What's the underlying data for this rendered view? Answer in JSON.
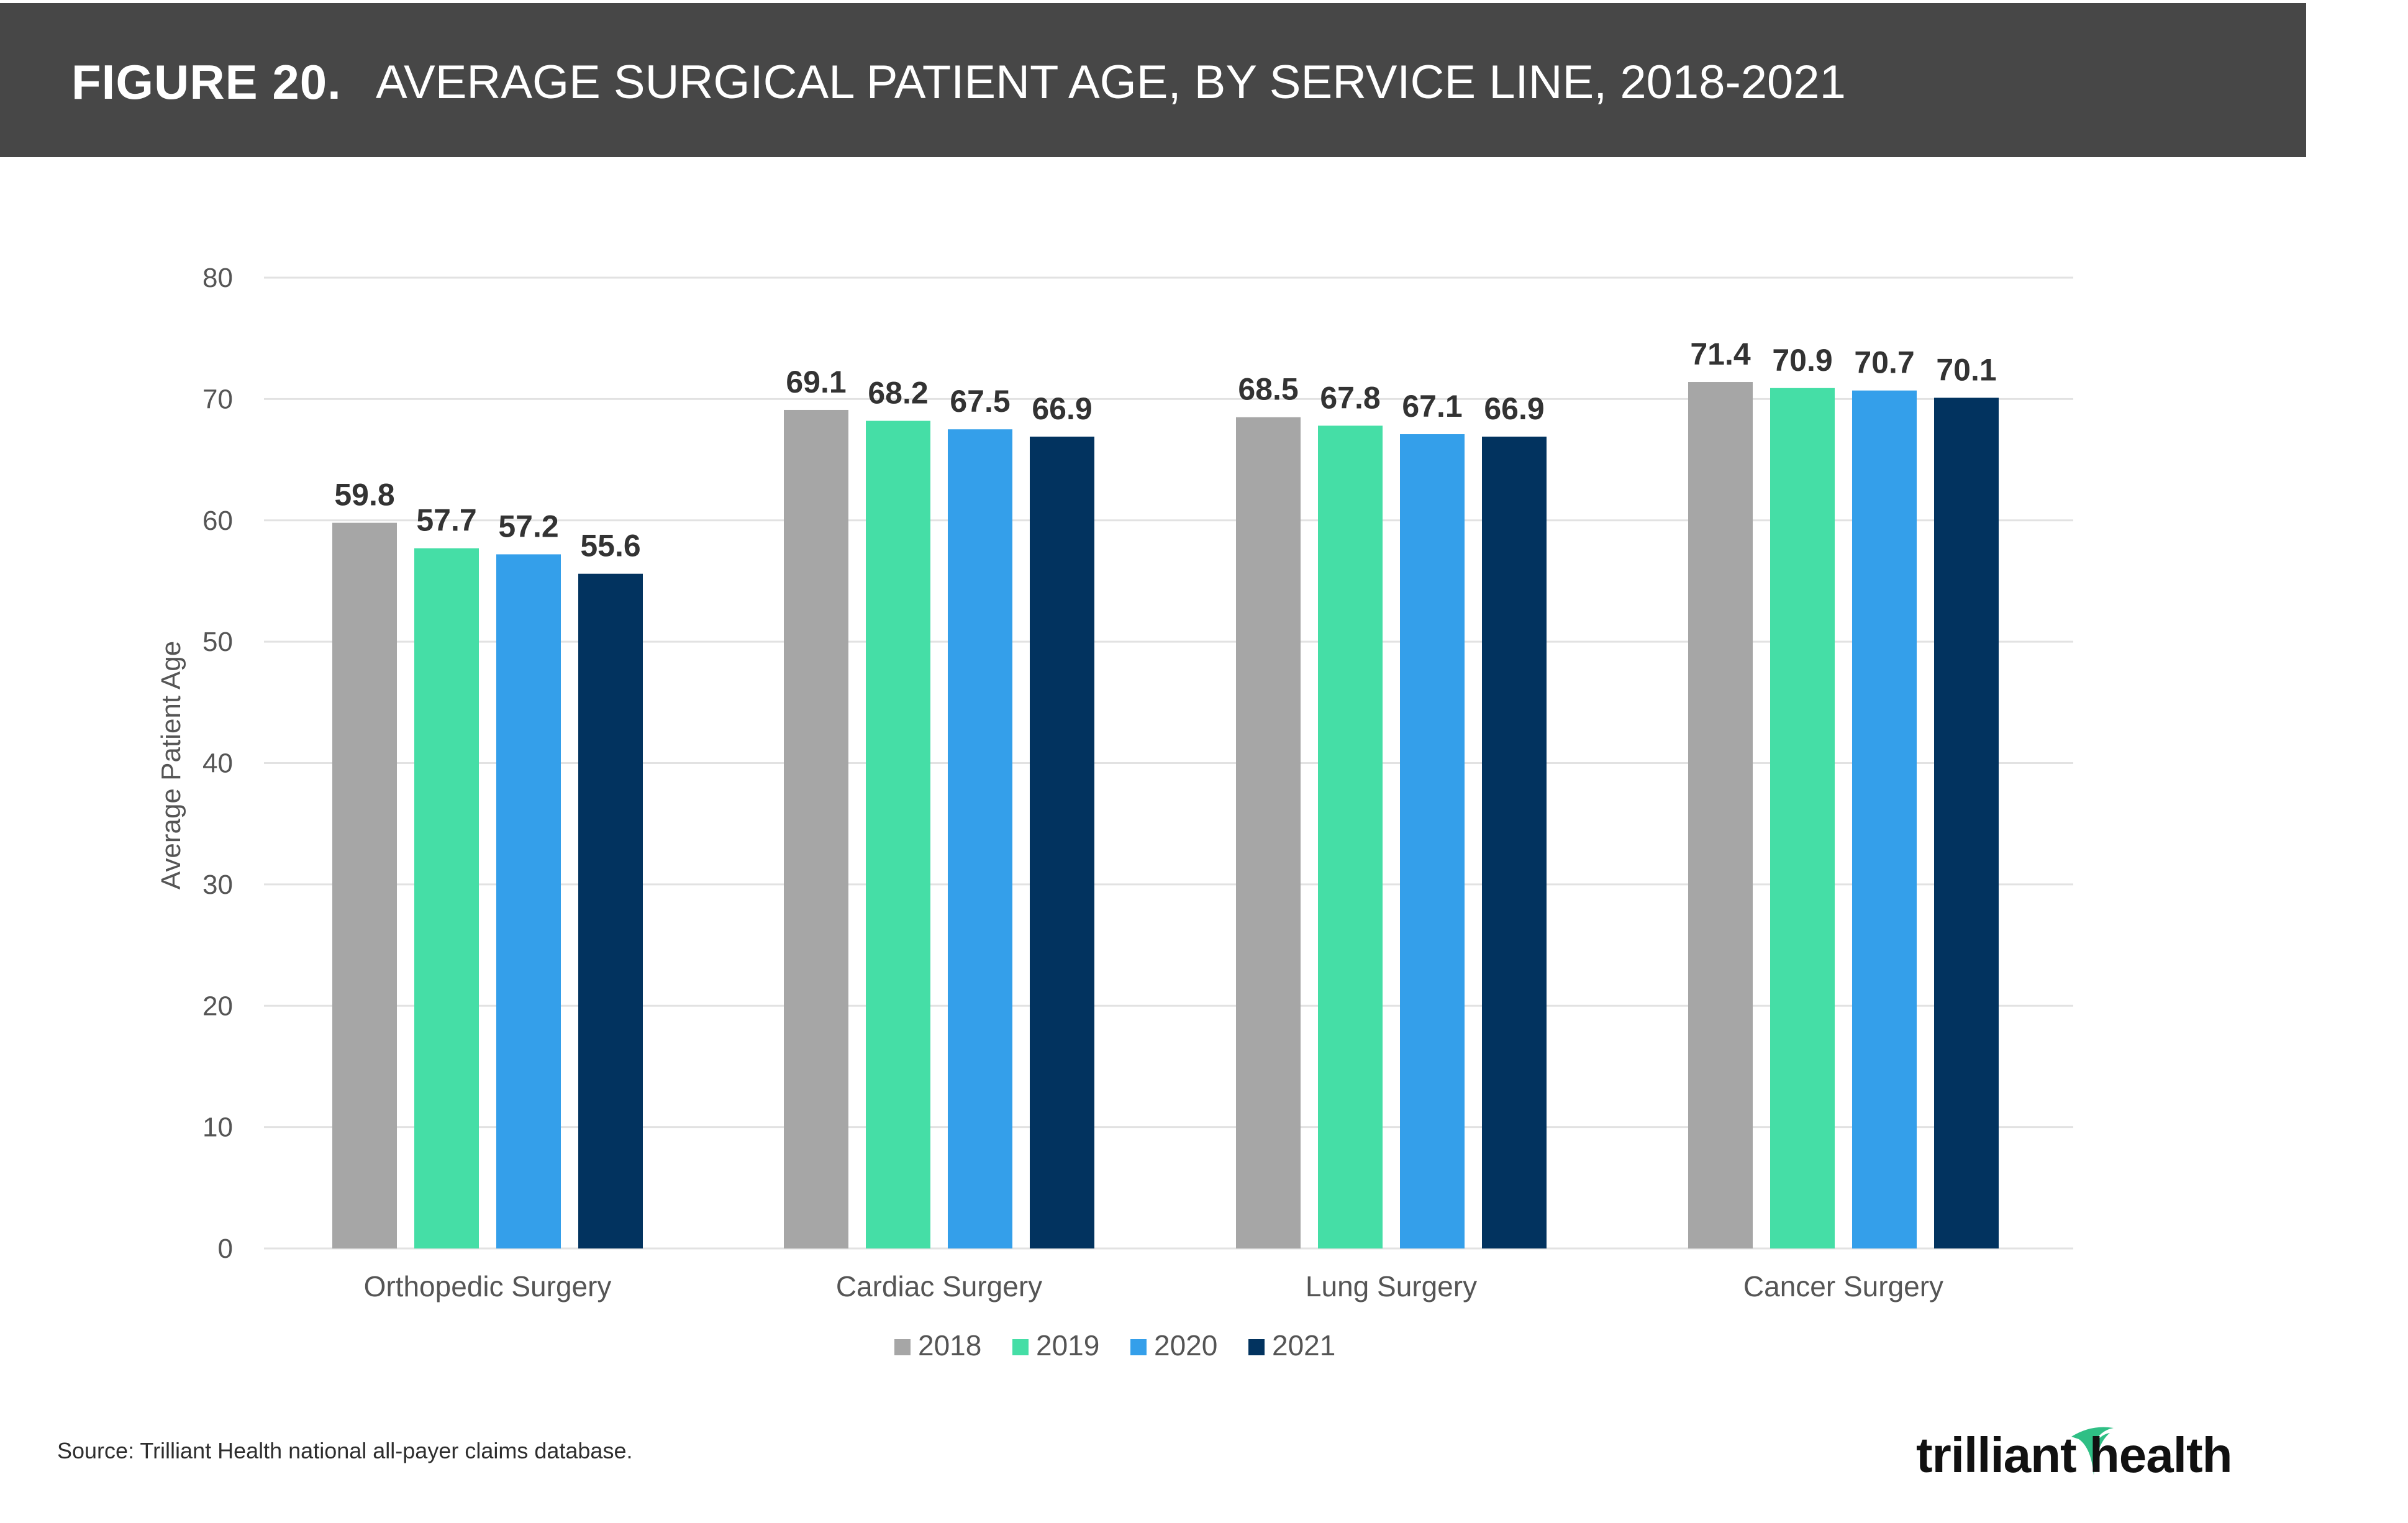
{
  "header": {
    "figure_label": "FIGURE 20.",
    "title": "AVERAGE SURGICAL PATIENT AGE, BY SERVICE LINE, 2018-2021"
  },
  "footer": {
    "source": "Source: Trilliant Health national all-payer claims database.",
    "logo_text": "trilliant health"
  },
  "colors": {
    "header_bg": "#474747",
    "grid": "#e2e2e2",
    "axis_text": "#555555",
    "label_text": "#333333"
  },
  "chart_data": {
    "type": "bar",
    "title": "AVERAGE SURGICAL PATIENT AGE, BY SERVICE LINE, 2018-2021",
    "xlabel": "",
    "ylabel": "Average Patient Age",
    "ylim": [
      0,
      80
    ],
    "yticks": [
      0,
      10,
      20,
      30,
      40,
      50,
      60,
      70,
      80
    ],
    "grid": true,
    "legend_position": "bottom",
    "categories": [
      "Orthopedic Surgery",
      "Cardiac Surgery",
      "Lung Surgery",
      "Cancer Surgery"
    ],
    "series": [
      {
        "name": "2018",
        "color": "#a6a6a6",
        "values": [
          59.8,
          69.1,
          68.5,
          71.4
        ]
      },
      {
        "name": "2019",
        "color": "#45dea6",
        "values": [
          57.7,
          68.2,
          67.8,
          70.9
        ]
      },
      {
        "name": "2020",
        "color": "#349fea",
        "values": [
          57.2,
          67.5,
          67.1,
          70.7
        ]
      },
      {
        "name": "2021",
        "color": "#02335f",
        "values": [
          55.6,
          66.9,
          66.9,
          70.1
        ]
      }
    ]
  }
}
